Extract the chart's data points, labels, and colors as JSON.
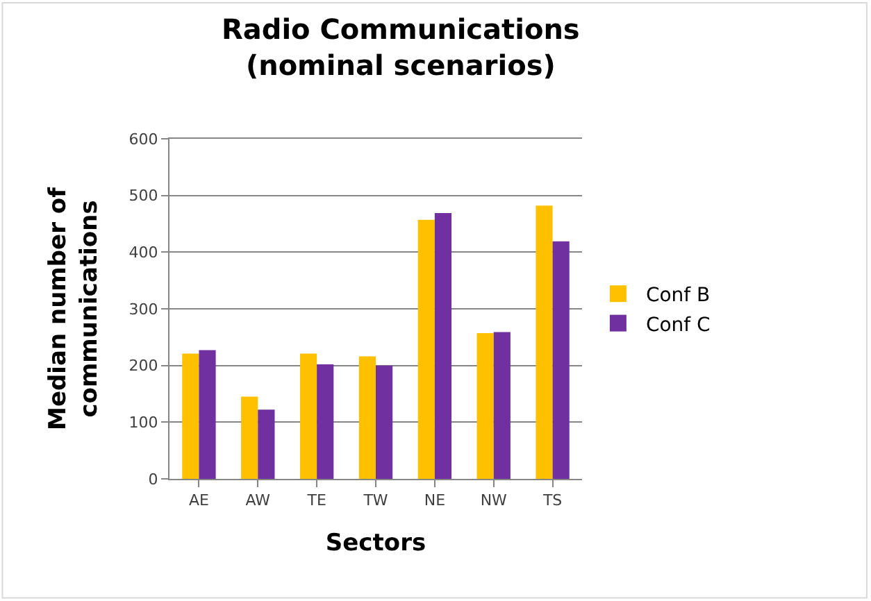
{
  "chart_data": {
    "type": "bar",
    "title": "Radio Communications\n(nominal scenarios)",
    "xlabel": "Sectors",
    "ylabel": "Median number of\ncommunications",
    "categories": [
      "AE",
      "AW",
      "TE",
      "TW",
      "NE",
      "NW",
      "TS"
    ],
    "series": [
      {
        "name": "Conf B",
        "color": "#ffc000",
        "values": [
          221,
          145,
          221,
          216,
          457,
          257,
          482
        ]
      },
      {
        "name": "Conf C",
        "color": "#7030a0",
        "values": [
          227,
          122,
          202,
          200,
          469,
          259,
          419
        ]
      }
    ],
    "ylim": [
      0,
      600
    ],
    "yticks": [
      0,
      100,
      200,
      300,
      400,
      500,
      600
    ],
    "grid": "y",
    "legend": "right"
  }
}
